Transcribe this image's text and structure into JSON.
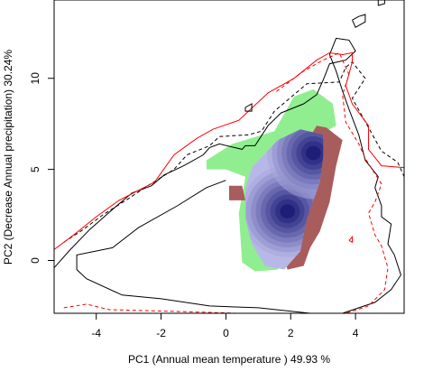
{
  "chart_data": {
    "type": "heatmap",
    "title": "",
    "xlabel": "PC1 (Annual mean temperature ) 49.93 %",
    "ylabel": "PC2 (Decrease Annual precipitation) 30.24%",
    "xlim": [
      -5.3,
      5.5
    ],
    "ylim": [
      -2.9,
      14.3
    ],
    "x_ticks": [
      -4,
      -2,
      0,
      2,
      4
    ],
    "y_ticks": [
      0,
      5,
      10
    ],
    "x_tick_labels": [
      "-4",
      "-2",
      "0",
      "2",
      "4"
    ],
    "y_tick_labels": [
      "0",
      "5",
      "10"
    ],
    "grid": false,
    "legend": "none",
    "layers": [
      {
        "name": "",
        "kind": "filled-region",
        "color": "#90ee90",
        "outline": [
          [
            -0.6,
            5.5
          ],
          [
            0.2,
            6.4
          ],
          [
            1.5,
            7.1
          ],
          [
            2.1,
            9.0
          ],
          [
            2.7,
            9.4
          ],
          [
            3.3,
            8.6
          ],
          [
            3.4,
            7.4
          ],
          [
            2.8,
            6.8
          ],
          [
            2.3,
            4.8
          ],
          [
            2.0,
            1.2
          ],
          [
            1.6,
            -0.5
          ],
          [
            0.9,
            -0.6
          ],
          [
            0.5,
            -0.1
          ],
          [
            0.4,
            2.6
          ],
          [
            0.6,
            4.6
          ],
          [
            0,
            5.0
          ],
          [
            -0.6,
            5.0
          ]
        ]
      },
      {
        "name": "",
        "kind": "filled-region",
        "color": "#a85c5c",
        "outline": [
          [
            3.1,
            7.3
          ],
          [
            3.6,
            6.6
          ],
          [
            3.4,
            5.2
          ],
          [
            3.2,
            3.2
          ],
          [
            2.9,
            1.6
          ],
          [
            2.6,
            0.7
          ],
          [
            2.4,
            -0.3
          ],
          [
            1.9,
            -0.5
          ],
          [
            1.7,
            0.7
          ],
          [
            1.5,
            2.6
          ],
          [
            1.9,
            4.5
          ],
          [
            2.4,
            6.2
          ],
          [
            2.8,
            7.4
          ]
        ]
      },
      {
        "name": "",
        "kind": "filled-region",
        "color": "#a85c5c",
        "outline": [
          [
            0.1,
            4.1
          ],
          [
            0.5,
            4.1
          ],
          [
            0.6,
            3.3
          ],
          [
            0.1,
            3.3
          ]
        ]
      },
      {
        "name": "",
        "kind": "density-gradient",
        "edge_color": "#b8b8e8",
        "core_color": "#0f0f6e",
        "outline": [
          [
            0.6,
            4.0
          ],
          [
            0.8,
            5.1
          ],
          [
            1.6,
            6.6
          ],
          [
            2.3,
            7.2
          ],
          [
            3.0,
            6.9
          ],
          [
            3.0,
            5.7
          ],
          [
            2.9,
            4.3
          ],
          [
            2.5,
            2.3
          ],
          [
            2.3,
            0.5
          ],
          [
            1.8,
            -0.5
          ],
          [
            1.2,
            -0.3
          ],
          [
            0.8,
            0.9
          ],
          [
            0.6,
            2.3
          ]
        ],
        "peaks": [
          {
            "x": 1.9,
            "y": 2.7
          },
          {
            "x": 2.7,
            "y": 5.9
          }
        ]
      },
      {
        "name": "",
        "kind": "contour",
        "color": "#000000",
        "dash": "solid",
        "points": [
          [
            -5.3,
            -0.4
          ],
          [
            -4.8,
            0.6
          ],
          [
            -4.2,
            1.7
          ],
          [
            -3.5,
            2.8
          ],
          [
            -2.9,
            3.7
          ],
          [
            -2.3,
            4.1
          ],
          [
            -1.9,
            4.7
          ],
          [
            -1.3,
            5.2
          ],
          [
            -0.7,
            5.8
          ],
          [
            -0.5,
            6.2
          ],
          [
            -0.2,
            6.4
          ],
          [
            0.5,
            6.1
          ],
          [
            0.6,
            6.3
          ],
          [
            0.9,
            6.3
          ],
          [
            1.3,
            7.4
          ],
          [
            1.7,
            8.1
          ],
          [
            2.4,
            8.6
          ],
          [
            2.8,
            9.1
          ],
          [
            3.0,
            9.9
          ],
          [
            3.2,
            10.8
          ],
          [
            3.7,
            11.0
          ],
          [
            4.0,
            11.5
          ],
          [
            3.8,
            12.1
          ],
          [
            3.4,
            12.2
          ],
          [
            3.2,
            11.3
          ],
          [
            3.4,
            10.4
          ],
          [
            3.6,
            9.3
          ],
          [
            3.8,
            8.3
          ],
          [
            4.1,
            6.9
          ],
          [
            4.3,
            5.5
          ],
          [
            4.7,
            4.6
          ],
          [
            4.6,
            4.0
          ],
          [
            4.8,
            3.0
          ],
          [
            4.8,
            2.4
          ],
          [
            5.1,
            2.0
          ],
          [
            5.0,
            0.9
          ],
          [
            5.2,
            0.3
          ],
          [
            5.4,
            -0.8
          ],
          [
            5.1,
            -1.6
          ],
          [
            4.6,
            -2.3
          ],
          [
            3.6,
            -2.9
          ],
          [
            2.6,
            -2.9
          ],
          [
            1.0,
            -2.6
          ],
          [
            -0.5,
            -2.5
          ],
          [
            -2.0,
            -2.1
          ],
          [
            -3.2,
            -1.9
          ],
          [
            -4.3,
            -1.0
          ],
          [
            -4.6,
            -0.5
          ],
          [
            -4.6,
            0.3
          ],
          [
            -3.5,
            0.7
          ],
          [
            -2.7,
            1.8
          ],
          [
            -1.5,
            3.0
          ],
          [
            -0.6,
            4.0
          ],
          [
            0,
            4.4
          ]
        ]
      },
      {
        "name": "",
        "kind": "contour",
        "color": "#000000",
        "dash": "dashed",
        "points": [
          [
            -5.0,
            1.0
          ],
          [
            -4.4,
            1.7
          ],
          [
            -3.8,
            2.5
          ],
          [
            -3.0,
            3.4
          ],
          [
            -2.5,
            4.0
          ],
          [
            -1.6,
            5.0
          ],
          [
            -1.2,
            5.8
          ],
          [
            -0.5,
            6.3
          ],
          [
            -0.2,
            6.8
          ],
          [
            0.7,
            6.9
          ],
          [
            1.1,
            7.1
          ],
          [
            1.5,
            8.2
          ],
          [
            2.5,
            9.7
          ],
          [
            3.5,
            9.8
          ],
          [
            3.7,
            10.6
          ],
          [
            3.9,
            10.9
          ],
          [
            4.3,
            10.0
          ],
          [
            3.9,
            8.9
          ],
          [
            4.4,
            7.3
          ],
          [
            4.8,
            6.0
          ],
          [
            5.3,
            5.4
          ],
          [
            5.5,
            4.6
          ]
        ]
      },
      {
        "name": "",
        "kind": "contour",
        "color": "#ff0000",
        "dash": "solid",
        "points": [
          [
            -5.3,
            0.6
          ],
          [
            -4.7,
            1.4
          ],
          [
            -4.0,
            2.4
          ],
          [
            -3.3,
            3.3
          ],
          [
            -2.2,
            4.3
          ],
          [
            -1.6,
            5.8
          ],
          [
            -0.9,
            6.7
          ],
          [
            -0.4,
            7.2
          ],
          [
            0.4,
            7.7
          ],
          [
            1.3,
            9.2
          ],
          [
            2.1,
            10.0
          ],
          [
            2.8,
            11.0
          ],
          [
            3.2,
            11.4
          ],
          [
            3.6,
            11.3
          ],
          [
            3.9,
            11.4
          ],
          [
            3.9,
            10.9
          ],
          [
            3.7,
            9.6
          ],
          [
            3.9,
            8.6
          ],
          [
            4.4,
            7.4
          ],
          [
            4.4,
            6.1
          ],
          [
            4.8,
            5.2
          ],
          [
            5.5,
            5.1
          ]
        ]
      },
      {
        "name": "",
        "kind": "contour",
        "color": "#ff0000",
        "dash": "dashed",
        "points": [
          [
            -5.0,
            -2.6
          ],
          [
            -4.3,
            -2.4
          ],
          [
            -3.6,
            -2.7
          ],
          [
            -1.5,
            -2.8
          ],
          [
            0.4,
            -2.9
          ],
          [
            2.6,
            -3.0
          ],
          [
            3.7,
            -2.9
          ],
          [
            4.4,
            -2.5
          ],
          [
            4.9,
            -1.6
          ],
          [
            5.0,
            -0.4
          ],
          [
            4.8,
            0.8
          ],
          [
            4.6,
            1.4
          ],
          [
            4.4,
            2.6
          ],
          [
            4.6,
            3.2
          ],
          [
            4.8,
            4.2
          ],
          [
            4.3,
            5.6
          ],
          [
            4.1,
            6.4
          ],
          [
            3.7,
            7.6
          ],
          [
            3.6,
            9.1
          ],
          [
            3.8,
            10.2
          ],
          [
            3.5,
            11.4
          ],
          [
            3.0,
            11.0
          ],
          [
            2.4,
            10.4
          ],
          [
            1.5,
            9.2
          ]
        ]
      },
      {
        "name": "",
        "kind": "contour",
        "color": "#000000",
        "dash": "solid",
        "points": [
          [
            3.9,
            13.2
          ],
          [
            4.1,
            13.4
          ],
          [
            4.3,
            13.5
          ],
          [
            4.3,
            13.1
          ],
          [
            4.0,
            12.8
          ],
          [
            3.9,
            13.2
          ]
        ]
      },
      {
        "name": "",
        "kind": "contour",
        "color": "#000000",
        "dash": "solid",
        "points": [
          [
            4.7,
            14.0
          ],
          [
            4.9,
            14.1
          ],
          [
            4.9,
            14.3
          ],
          [
            4.7,
            14.3
          ],
          [
            4.7,
            14.0
          ]
        ]
      },
      {
        "name": "",
        "kind": "contour",
        "color": "#000000",
        "dash": "solid",
        "points": [
          [
            0.6,
            8.4
          ],
          [
            0.8,
            8.6
          ],
          [
            0.8,
            8.2
          ],
          [
            0.6,
            8.2
          ],
          [
            0.6,
            8.4
          ]
        ]
      },
      {
        "name": "",
        "kind": "contour",
        "color": "#ff0000",
        "dash": "solid",
        "points": [
          [
            3.8,
            1.1
          ],
          [
            3.9,
            1.3
          ],
          [
            3.9,
            1.0
          ],
          [
            3.8,
            1.1
          ]
        ]
      }
    ]
  }
}
